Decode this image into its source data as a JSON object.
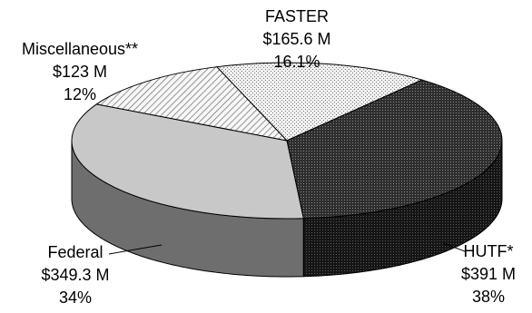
{
  "chart_data": {
    "type": "pie",
    "title": "",
    "slices": [
      {
        "name": "FASTER",
        "amount": "$165.6 M",
        "percent_label": "16.1%",
        "value": 16.1,
        "pattern": "dense-dots-light"
      },
      {
        "name": "HUTF*",
        "amount": "$391 M",
        "percent_label": "38%",
        "value": 38,
        "pattern": "dense-dots-dark"
      },
      {
        "name": "Federal",
        "amount": "$349.3 M",
        "percent_label": "34%",
        "value": 34,
        "pattern": "solid-light-gray"
      },
      {
        "name": "Miscellaneous**",
        "amount": "$123 M",
        "percent_label": "12%",
        "value": 12,
        "pattern": "diagonal-hatch"
      }
    ],
    "colors": {
      "faster_top": "#e6e6e6",
      "hutf_top": "#2b2b2b",
      "federal_top": "#c8c8c8",
      "misc_top": "#eeeeee",
      "hutf_side": "#1e1e1e",
      "federal_side": "#6e6e6e",
      "outline": "#000000"
    }
  }
}
